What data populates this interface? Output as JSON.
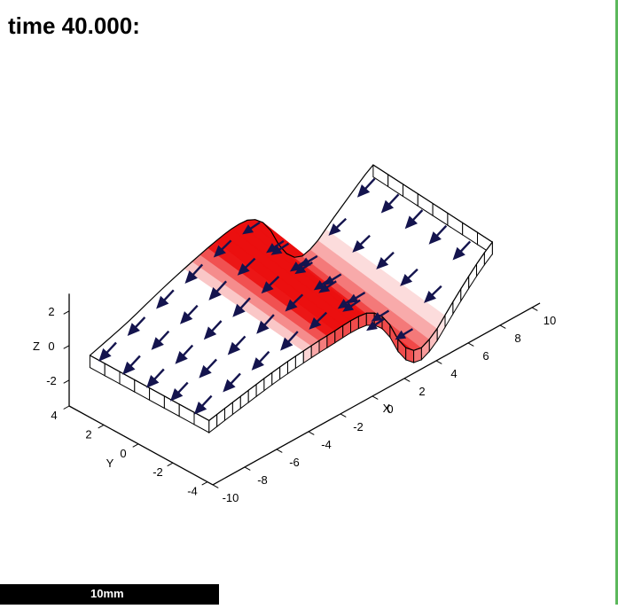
{
  "header": {
    "title": "time 40.000:"
  },
  "scale_bar": {
    "label": "10mm",
    "bg": "#000000",
    "text_color": "#ffffff"
  },
  "page": {
    "bg": "#ffffff",
    "right_border_color": "#5cb85c"
  },
  "chart_data": {
    "type": "3d-surface-quiver",
    "title": "time 40.000:",
    "description": "Deformed elastic sheet with propagating red excitation wavefront and dark-blue velocity arrows pointing in -x and -z",
    "axes": {
      "x": {
        "label": "X",
        "range": [
          -10,
          10
        ],
        "ticks": [
          -10,
          -8,
          -6,
          -4,
          -2,
          0,
          2,
          4,
          6,
          8,
          10
        ]
      },
      "y": {
        "label": "Y",
        "range": [
          -4,
          4
        ],
        "ticks": [
          4,
          2,
          0,
          -2,
          -4
        ]
      },
      "z": {
        "label": "Z",
        "range": [
          -3.5,
          3
        ],
        "ticks": [
          2,
          0,
          -2
        ]
      }
    },
    "projection": {
      "origin": [
        78,
        458
      ],
      "corner": [
        -10,
        4
      ],
      "ex": [
        18,
        -10
      ],
      "ey": [
        19.5,
        10.7
      ],
      "ez": [
        0,
        -19.5
      ],
      "zfloor": -3.5,
      "x_axis_y": -4.31,
      "x_axis_overshoot": 10.5
    },
    "surface": {
      "u_range": [
        -9.3,
        8.45
      ],
      "v_range": [
        -4,
        4
      ],
      "u_steps": 36,
      "v_steps": 8,
      "shear_x": 0.6,
      "thickness": 0.7,
      "profile_f": [
        [
          -9.3,
          -0.62
        ],
        [
          -7,
          -0.05
        ],
        [
          -5,
          0.5
        ],
        [
          -3,
          0.95
        ],
        [
          -1.5,
          1.22
        ],
        [
          -0.3,
          1.38
        ],
        [
          0.8,
          1.25
        ],
        [
          1.8,
          0.35
        ],
        [
          2.8,
          -1.6
        ],
        [
          3.8,
          -2.45
        ],
        [
          4.8,
          -2.1
        ],
        [
          5.8,
          -1.2
        ],
        [
          6.8,
          -0.32
        ],
        [
          7.8,
          0.5
        ],
        [
          8.45,
          0.95
        ]
      ],
      "twist_g": [
        [
          -9.3,
          -0.62
        ],
        [
          -7,
          -0.5
        ],
        [
          -5,
          -0.3
        ],
        [
          -3,
          -0.08
        ],
        [
          -1,
          0.12
        ],
        [
          1,
          0.2
        ],
        [
          3,
          0.22
        ],
        [
          5,
          0.05
        ],
        [
          7,
          -0.18
        ],
        [
          8.45,
          -0.27
        ]
      ],
      "wave_stops": [
        [
          -3.6,
          0
        ],
        [
          -1.6,
          1
        ],
        [
          3.2,
          1
        ],
        [
          5.6,
          0
        ]
      ],
      "wave_color": [
        235,
        15,
        15
      ],
      "wall_tint": 0.75,
      "fill_color": "#ffffff",
      "edge_color": "#000000"
    },
    "arrows": {
      "color": "#14144e",
      "dir_x": -1.05,
      "len": 1.0,
      "lift": 0.4,
      "v_values": [
        -3.2,
        -1.6,
        0,
        1.6,
        3.2
      ],
      "cols": [
        {
          "u": -8.4,
          "dz": -0.5
        },
        {
          "u": -6.6,
          "dz": -0.5
        },
        {
          "u": -4.8,
          "dz": -0.5
        },
        {
          "u": -3.0,
          "dz": -0.52
        },
        {
          "u": -1.2,
          "dz": -0.4
        },
        {
          "u": 0.6,
          "dz": -0.12
        },
        {
          "u": 2.4,
          "dz": -0.1
        },
        {
          "u": 4.2,
          "dz": -0.05
        },
        {
          "u": 6.0,
          "dz": -0.4
        },
        {
          "u": 7.8,
          "dz": -0.5
        }
      ]
    }
  }
}
